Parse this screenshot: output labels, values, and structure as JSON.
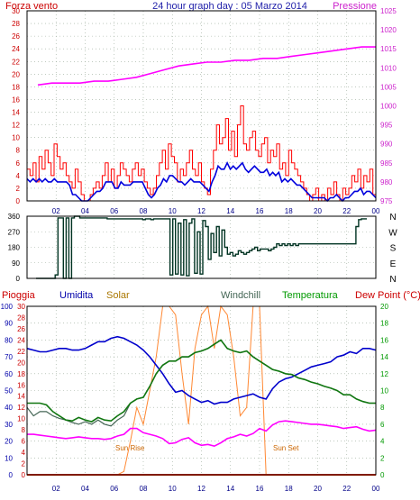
{
  "header": {
    "left_label": "Forza vento",
    "left_color": "#cc0000",
    "title": "24 hour graph day : 05 Marzo 2014",
    "title_color": "#2222aa",
    "right_label": "Pressione",
    "right_color": "#cc22cc"
  },
  "colors": {
    "wind": "#ff0000",
    "wind_avg": "#0000dd",
    "pressure": "#ff00ff",
    "direction": "#003322",
    "rain": "#ff3300",
    "humidity": "#0000cc",
    "solar": "#ff8833",
    "windchill": "#446655",
    "temperature": "#117711",
    "dewpoint": "#ff00ff",
    "grid": "#99aa99",
    "frame": "#000000",
    "green_axis": "#009900",
    "blue_axis": "#0000aa",
    "magenta_axis": "#cc22cc",
    "red_axis": "#cc0000",
    "orange_axis": "#cc6600"
  },
  "bottom": {
    "labels": {
      "rain": "Pioggia",
      "humidity": "Umidita",
      "solar": "Solar",
      "windchill": "Windchill",
      "temperature": "Temperatura",
      "dewpoint": "Dew Point (°C)"
    },
    "annotations": {
      "sunrise": "Sun Rise",
      "sunset": "Sun Set"
    }
  },
  "chart_data": [
    {
      "type": "line",
      "x_ticks": [
        "02",
        "04",
        "06",
        "08",
        "10",
        "12",
        "14",
        "16",
        "18",
        "20",
        "22",
        "00"
      ],
      "left_ticks": [
        "30",
        "28",
        "26",
        "24",
        "22",
        "20",
        "18",
        "16",
        "14",
        "12",
        "10",
        "8",
        "6",
        "4",
        "2",
        "0"
      ],
      "right_ticks": [
        "1025",
        "1020",
        "1015",
        "1010",
        "1005",
        "1000",
        "995",
        "990",
        "985",
        "980",
        "975"
      ],
      "ylim_left": [
        0,
        30
      ],
      "ylim_right": [
        975,
        1025
      ],
      "series": [
        {
          "key": "wind_gust",
          "values": [
            5,
            4,
            6,
            3,
            7,
            5,
            8,
            6,
            4,
            9,
            7,
            5,
            6,
            4,
            3,
            2,
            5,
            3,
            1,
            0,
            0,
            1,
            2,
            3,
            2,
            4,
            6,
            3,
            5,
            2,
            4,
            6,
            5,
            4,
            3,
            5,
            6,
            4,
            5,
            3,
            2,
            1,
            2,
            4,
            6,
            8,
            5,
            9,
            7,
            6,
            3,
            5,
            4,
            6,
            8,
            5,
            4,
            6,
            3,
            2,
            1,
            5,
            8,
            12,
            9,
            10,
            13,
            8,
            11,
            7,
            12,
            15,
            9,
            8,
            10,
            11,
            8,
            7,
            9,
            10,
            6,
            8,
            7,
            9,
            5,
            6,
            4,
            8,
            6,
            5,
            4,
            3,
            2,
            1,
            0,
            1,
            2,
            0,
            1,
            0,
            2,
            1,
            3,
            1,
            0,
            2,
            1,
            2,
            4,
            3,
            5,
            2,
            4,
            3,
            5,
            1
          ]
        },
        {
          "key": "wind_avg",
          "values": [
            3.5,
            3,
            3.5,
            3,
            3.5,
            3,
            3.5,
            3,
            3,
            3.5,
            3,
            3,
            3,
            3,
            2.5,
            1,
            1,
            0.5,
            0,
            0,
            0,
            0.5,
            1,
            1.5,
            1.5,
            2,
            3,
            3,
            3,
            2,
            2,
            3,
            2.5,
            2.5,
            2.5,
            3,
            3,
            3,
            3,
            2,
            1,
            0.5,
            1,
            2,
            2.5,
            3.5,
            3,
            4,
            4,
            3.5,
            3,
            3,
            2.5,
            3,
            3.5,
            3,
            3,
            3,
            2.5,
            2,
            1.5,
            3,
            4,
            5.5,
            5,
            5,
            6,
            5,
            5.5,
            5,
            5.5,
            6,
            5,
            4.5,
            5,
            5.5,
            5,
            4.5,
            4.5,
            5,
            4,
            4.5,
            4,
            4.5,
            3,
            3.5,
            3,
            3.5,
            3,
            2.5,
            2.5,
            2,
            1.5,
            1,
            0.5,
            0.5,
            0.5,
            0.5,
            0.5,
            0,
            0.5,
            0.5,
            1,
            0.5,
            0,
            0.5,
            0.5,
            1,
            1.5,
            1.5,
            2,
            1,
            1.5,
            1.5,
            1,
            0.5
          ]
        },
        {
          "key": "pressure",
          "axis": "right",
          "values": [
            1005.5,
            1006,
            1006,
            1006,
            1006.5,
            1006.5,
            1007,
            1007.5,
            1008.5,
            1009.5,
            1010.5,
            1011,
            1011.5,
            1011.5,
            1012,
            1012,
            1012.5,
            1012.5,
            1013,
            1013.5,
            1014,
            1014.5,
            1015,
            1015.5,
            1015.5
          ]
        }
      ]
    },
    {
      "type": "line",
      "ylim": [
        0,
        360
      ],
      "y_ticks": [
        "360",
        "270",
        "180",
        "90",
        "0"
      ],
      "right_ticks": [
        "N",
        "W",
        "S",
        "E",
        "N"
      ],
      "series": [
        {
          "key": "wind_direction",
          "values": [
            0,
            0,
            0,
            0,
            0,
            0,
            0,
            20,
            350,
            350,
            0,
            350,
            0,
            350,
            360,
            360,
            350,
            350,
            350,
            350,
            350,
            350,
            350,
            350,
            350,
            350,
            345,
            345,
            345,
            345,
            345,
            345,
            345,
            345,
            345,
            345,
            345,
            345,
            345,
            340,
            345,
            345,
            340,
            345,
            345,
            345,
            345,
            345,
            345,
            20,
            345,
            25,
            320,
            20,
            340,
            15,
            320,
            345,
            30,
            270,
            25,
            335,
            300,
            110,
            260,
            150,
            300,
            130,
            280,
            180,
            140,
            150,
            130,
            140,
            160,
            150,
            140,
            150,
            160,
            170,
            180,
            160,
            170,
            170,
            170,
            160,
            170,
            180,
            200,
            190,
            200,
            190,
            200,
            190,
            200,
            190,
            200,
            200,
            200,
            200,
            200,
            200,
            200,
            200,
            200,
            200,
            200,
            200,
            200,
            200,
            200,
            200,
            200,
            200,
            200,
            200,
            200,
            300,
            340,
            345,
            345
          ]
        }
      ]
    },
    {
      "type": "line",
      "x_ticks": [
        "02",
        "04",
        "06",
        "08",
        "10",
        "12",
        "14",
        "16",
        "18",
        "20",
        "22",
        "00"
      ],
      "humidity_ticks": [
        "100",
        "90",
        "80",
        "70",
        "60",
        "50",
        "40",
        "30",
        "20",
        "10",
        "0"
      ],
      "rain_ticks": [
        "30",
        "28",
        "26",
        "24",
        "22",
        "20",
        "18",
        "16",
        "14",
        "12",
        "10",
        "8",
        "6",
        "4",
        "2",
        "0"
      ],
      "temp_ticks": [
        "20",
        "18",
        "16",
        "14",
        "12",
        "10",
        "8",
        "6",
        "4",
        "2",
        "0"
      ],
      "ylim_humidity": [
        0,
        100
      ],
      "ylim_temperature": [
        0,
        20
      ],
      "series": [
        {
          "key": "humidity",
          "axis": "humidity",
          "values": [
            75,
            74,
            73,
            73,
            74,
            75,
            75,
            74,
            74,
            75,
            77,
            79,
            79,
            81,
            82,
            81,
            79,
            77,
            74,
            70,
            65,
            60,
            54,
            49,
            50,
            47,
            45,
            43,
            44,
            42,
            43,
            43,
            45,
            46,
            47,
            48,
            46,
            45,
            51,
            55,
            57,
            58,
            60,
            62,
            64,
            65,
            66,
            67,
            70,
            71,
            73,
            72,
            75,
            75,
            74
          ]
        },
        {
          "key": "temperature",
          "axis": "temperature",
          "values": [
            8.5,
            8.5,
            8.5,
            8.3,
            7.5,
            7,
            6.5,
            6.4,
            6.8,
            6.5,
            6.3,
            6.8,
            6.5,
            6.4,
            7,
            7.5,
            8.5,
            9,
            9.2,
            10.5,
            12,
            13,
            13.5,
            13.5,
            14,
            14,
            14.5,
            14.7,
            15,
            15.5,
            16,
            15,
            14.7,
            14.5,
            14.7,
            14,
            13.5,
            13,
            12.5,
            12.3,
            12,
            11.9,
            11.5,
            11.3,
            11,
            10.8,
            10.5,
            10.3,
            10,
            9.5,
            9.5,
            9,
            8.7,
            8.5,
            8.5
          ]
        },
        {
          "key": "windchill",
          "axis": "temperature",
          "values": [
            8,
            7,
            7.5,
            7.5,
            7,
            6.7,
            6.5,
            6.2,
            6,
            6.3,
            6,
            6.5,
            6,
            5.8,
            6.5,
            7,
            8.5,
            9,
            9.2,
            10.5,
            12,
            13,
            13.5,
            13.5,
            14,
            14,
            14.5,
            14.7,
            15,
            15.5,
            16,
            15,
            14.7,
            14.5,
            14.7,
            14,
            13.5,
            13,
            12.5,
            12.3,
            12,
            11.9,
            11.5,
            11.3,
            11,
            10.8,
            10.5,
            10.3,
            10,
            9.5,
            9.5,
            9,
            8.7,
            8.5,
            8.5
          ]
        },
        {
          "key": "dewpoint",
          "axis": "temperature",
          "values": [
            4.8,
            4.8,
            4.7,
            4.6,
            4.5,
            4.4,
            4.3,
            4.4,
            4.5,
            4.4,
            4.3,
            4.3,
            4.2,
            4.3,
            4.6,
            4.8,
            5.5,
            5.5,
            5,
            4.8,
            4.6,
            4.3,
            3.7,
            3.8,
            4.2,
            4.4,
            3.8,
            3.5,
            3.6,
            3.4,
            3.8,
            4.3,
            4.5,
            4.8,
            4.6,
            4.9,
            5.5,
            5.2,
            5.9,
            6.3,
            6.4,
            6.3,
            6.2,
            6.1,
            6,
            6,
            5.9,
            5.8,
            5.7,
            5.5,
            5.6,
            5.7,
            5.4,
            5.2,
            5.3
          ]
        },
        {
          "key": "solar",
          "axis": "humidity",
          "values": [
            0,
            0,
            0,
            0,
            0,
            0,
            0,
            0,
            0,
            0,
            0,
            0,
            0,
            0,
            0,
            2,
            20,
            40,
            30,
            50,
            70,
            100,
            100,
            95,
            60,
            30,
            75,
            95,
            100,
            75,
            100,
            95,
            70,
            35,
            40,
            100,
            100,
            0,
            0,
            0,
            0,
            0,
            0,
            0,
            0,
            0,
            0,
            0,
            0,
            0,
            0,
            0,
            0,
            0,
            0
          ]
        },
        {
          "key": "rain",
          "axis": "rain",
          "values": [
            0,
            0,
            0,
            0,
            0,
            0,
            0,
            0,
            0,
            0,
            0,
            0,
            0,
            0,
            0,
            0,
            0,
            0,
            0,
            0,
            0,
            0,
            0,
            0,
            0,
            0,
            0,
            0,
            0,
            0,
            0,
            0,
            0,
            0,
            0,
            0,
            0,
            0,
            0,
            0,
            0,
            0,
            0,
            0,
            0,
            0,
            0,
            0,
            0,
            0,
            0,
            0,
            0,
            0,
            0
          ]
        }
      ]
    }
  ]
}
